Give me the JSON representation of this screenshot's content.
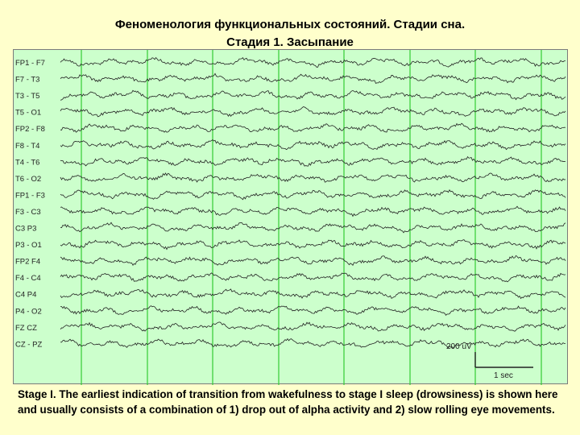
{
  "title": {
    "line1": "Феноменология функциональных состояний. Стадии сна.",
    "line2": "Стадия 1. Засыпание"
  },
  "eeg": {
    "channels": [
      "FP1 - F7",
      "F7 - T3",
      "T3 - T5",
      "T5 - O1",
      "FP2 - F8",
      "F8 - T4",
      "T4 - T6",
      "T6 - O2",
      "FP1 - F3",
      "F3 - C3",
      "C3 P3",
      "P3 - O1",
      "FP2 F4",
      "F4 - C4",
      "C4 P4",
      "P4 - O2",
      "FZ CZ",
      "CZ - PZ"
    ],
    "amplitude_scale": "200 uV",
    "time_scale": "1 sec",
    "colors": {
      "background": "#ccffcc",
      "grid": "#33cc33",
      "trace": "#222222"
    }
  },
  "caption": "Stage I. The earliest indication of transition from wakefulness to stage I sleep (drowsiness) is shown here and usually consists of a combination of 1) drop out of alpha activity  and 2) slow rolling eye movements."
}
